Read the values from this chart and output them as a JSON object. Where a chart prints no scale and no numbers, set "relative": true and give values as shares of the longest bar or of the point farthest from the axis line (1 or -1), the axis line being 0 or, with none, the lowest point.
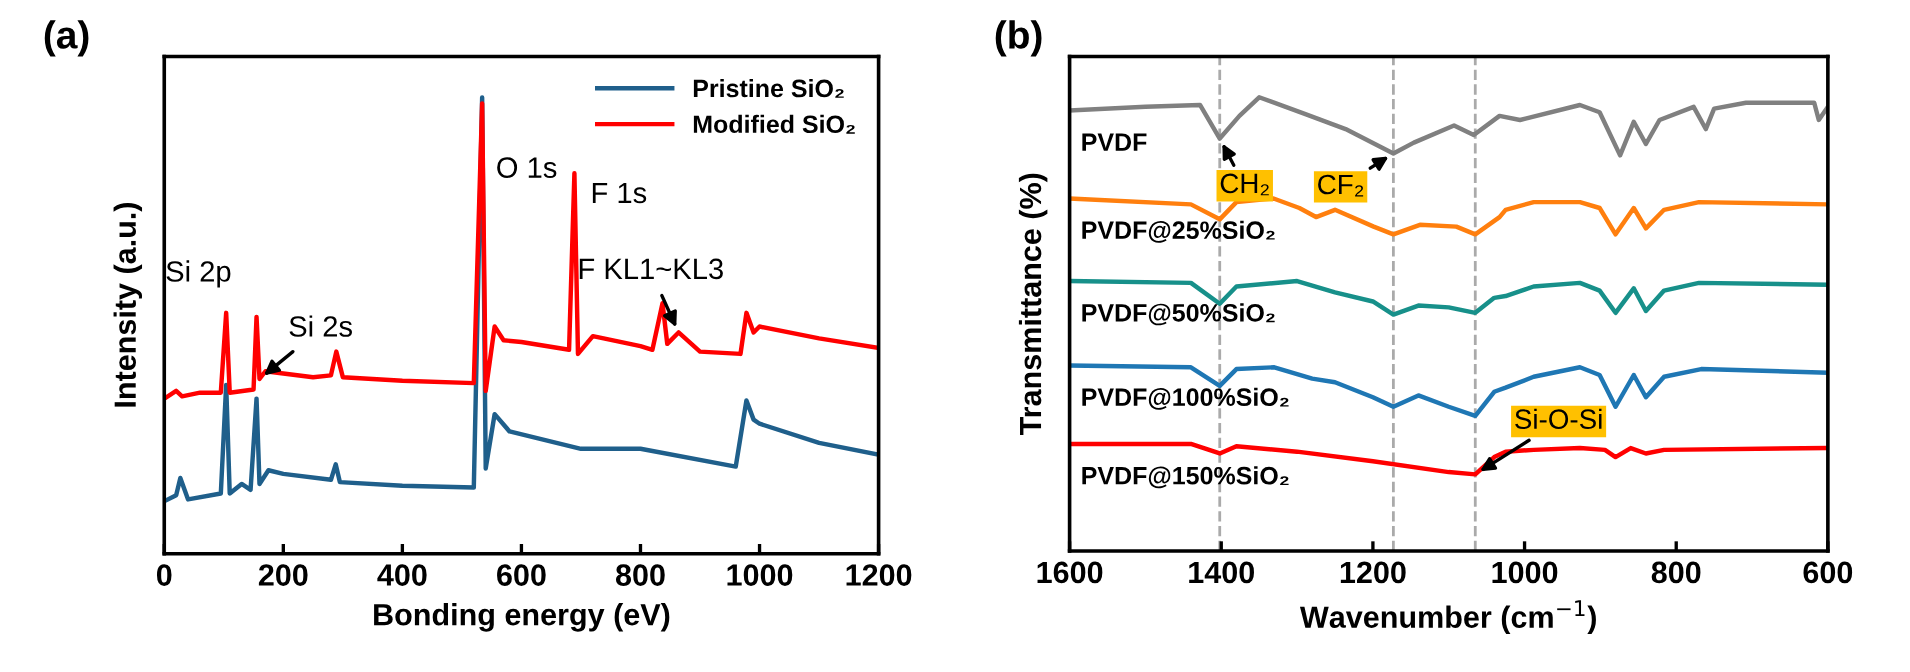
{
  "chart_data": [
    {
      "type": "line",
      "title": "(a)",
      "xlabel": "Bonding energy (eV)",
      "ylabel": "Intensity (a.u.)",
      "relative": true,
      "xlim": [
        0,
        1200
      ],
      "xticks": [
        0,
        200,
        400,
        600,
        800,
        1000,
        1200
      ],
      "tick_labels": "x",
      "grid": false,
      "legend": "top right",
      "series": [
        {
          "name": "Pristine SiO₂",
          "color": "#1f5f8b",
          "x": [
            0,
            20,
            27,
            40,
            95,
            104,
            110,
            130,
            145,
            155,
            160,
            175,
            200,
            280,
            288,
            295,
            400,
            520,
            534,
            540,
            555,
            580,
            700,
            800,
            960,
            978,
            990,
            1000,
            1100,
            1200
          ],
          "values": [
            0.115,
            0.128,
            0.166,
            0.119,
            0.132,
            0.37,
            0.132,
            0.153,
            0.14,
            0.34,
            0.153,
            0.183,
            0.175,
            0.162,
            0.196,
            0.157,
            0.149,
            0.145,
            1.0,
            0.187,
            0.306,
            0.268,
            0.23,
            0.23,
            0.191,
            0.336,
            0.294,
            0.285,
            0.243,
            0.217
          ]
        },
        {
          "name": "Modified SiO₂",
          "color": "#ff0000",
          "x": [
            0,
            20,
            30,
            60,
            95,
            104,
            110,
            150,
            155,
            160,
            170,
            250,
            280,
            289,
            300,
            400,
            520,
            534,
            540,
            555,
            570,
            600,
            680,
            689,
            695,
            720,
            800,
            820,
            837,
            845,
            864,
            900,
            968,
            978,
            990,
            1000,
            1100,
            1200
          ],
          "values": [
            0.34,
            0.357,
            0.345,
            0.353,
            0.353,
            0.528,
            0.353,
            0.36,
            0.519,
            0.383,
            0.4,
            0.387,
            0.391,
            0.443,
            0.387,
            0.379,
            0.374,
            0.987,
            0.357,
            0.498,
            0.468,
            0.464,
            0.447,
            0.834,
            0.438,
            0.477,
            0.455,
            0.447,
            0.549,
            0.46,
            0.485,
            0.443,
            0.438,
            0.528,
            0.485,
            0.498,
            0.472,
            0.451
          ]
        }
      ],
      "annotations": [
        {
          "text": "Si 2p",
          "x": 104,
          "y": 0.528
        },
        {
          "text": "Si 2s",
          "x": 160,
          "y": 0.383
        },
        {
          "text": "O 1s",
          "x": 534,
          "y": 0.987
        },
        {
          "text": "F 1s",
          "x": 689,
          "y": 0.834
        },
        {
          "text": "F KL1~KL3",
          "x": 864,
          "y": 0.485
        }
      ]
    },
    {
      "type": "line",
      "title": "(b)",
      "xlabel": "Wavenumber (cm$^{−1}$)",
      "ylabel": "Transmittance (%)",
      "relative": true,
      "xlim": [
        1600,
        600
      ],
      "xticks": [
        1600,
        1400,
        1200,
        1000,
        800,
        600
      ],
      "tick_labels": "x",
      "grid": false,
      "legend": false,
      "ref_lines": [
        {
          "axis": "x",
          "value": 1402,
          "color": "#aaaaaa",
          "line_style": "dashed"
        },
        {
          "axis": "x",
          "value": 1173,
          "color": "#aaaaaa",
          "line_style": "dashed"
        },
        {
          "axis": "x",
          "value": 1065,
          "color": "#aaaaaa",
          "line_style": "dashed"
        }
      ],
      "series": [
        {
          "name": "PVDF",
          "color": "#808080",
          "x": [
            1600,
            1500,
            1428,
            1402,
            1376,
            1350,
            1289,
            1236,
            1173,
            1146,
            1093,
            1067,
            1033,
            1006,
            927,
            901,
            874,
            856,
            840,
            822,
            777,
            761,
            750,
            708,
            618,
            612,
            600
          ],
          "values": [
            0.971,
            0.979,
            0.983,
            0.909,
            0.959,
            1.0,
            0.963,
            0.93,
            0.876,
            0.9,
            0.938,
            0.917,
            0.959,
            0.95,
            0.983,
            0.967,
            0.872,
            0.946,
            0.897,
            0.95,
            0.979,
            0.93,
            0.975,
            0.988,
            0.988,
            0.95,
            0.979
          ]
        },
        {
          "name": "PVDF@25%SiO₂",
          "color": "#ff7f0e",
          "x": [
            1600,
            1440,
            1402,
            1380,
            1331,
            1297,
            1275,
            1250,
            1199,
            1173,
            1138,
            1090,
            1065,
            1033,
            1025,
            988,
            927,
            901,
            880,
            856,
            840,
            816,
            770,
            600
          ],
          "values": [
            0.777,
            0.764,
            0.731,
            0.769,
            0.777,
            0.756,
            0.736,
            0.752,
            0.715,
            0.698,
            0.719,
            0.715,
            0.698,
            0.736,
            0.752,
            0.769,
            0.769,
            0.756,
            0.698,
            0.756,
            0.711,
            0.752,
            0.769,
            0.764
          ]
        },
        {
          "name": "PVDF@50%SiO₂",
          "color": "#17908a",
          "x": [
            1600,
            1440,
            1402,
            1380,
            1300,
            1250,
            1200,
            1173,
            1140,
            1100,
            1065,
            1040,
            1025,
            988,
            927,
            901,
            880,
            856,
            840,
            816,
            770,
            600
          ],
          "values": [
            0.595,
            0.591,
            0.545,
            0.583,
            0.595,
            0.57,
            0.55,
            0.521,
            0.541,
            0.537,
            0.525,
            0.558,
            0.562,
            0.583,
            0.591,
            0.574,
            0.525,
            0.579,
            0.529,
            0.574,
            0.591,
            0.587
          ]
        },
        {
          "name": "PVDF@100%SiO₂",
          "color": "#1f77b4",
          "x": [
            1600,
            1440,
            1402,
            1380,
            1330,
            1280,
            1250,
            1200,
            1173,
            1140,
            1100,
            1065,
            1040,
            1025,
            988,
            927,
            901,
            880,
            856,
            840,
            816,
            767,
            600
          ],
          "values": [
            0.409,
            0.405,
            0.364,
            0.401,
            0.405,
            0.38,
            0.372,
            0.339,
            0.318,
            0.343,
            0.318,
            0.298,
            0.351,
            0.36,
            0.384,
            0.405,
            0.388,
            0.318,
            0.388,
            0.339,
            0.384,
            0.401,
            0.393
          ]
        },
        {
          "name": "PVDF@150%SiO₂",
          "color": "#ff0000",
          "x": [
            1600,
            1440,
            1402,
            1380,
            1300,
            1200,
            1100,
            1065,
            1040,
            1025,
            988,
            927,
            894,
            880,
            860,
            840,
            816,
            600
          ],
          "values": [
            0.236,
            0.236,
            0.215,
            0.231,
            0.219,
            0.198,
            0.174,
            0.169,
            0.207,
            0.219,
            0.223,
            0.227,
            0.223,
            0.207,
            0.227,
            0.215,
            0.223,
            0.227
          ]
        }
      ],
      "annotations": [
        {
          "text": "CH₂",
          "x": 1402,
          "y": 0.909
        },
        {
          "text": "CF₂",
          "x": 1173,
          "y": 0.876
        },
        {
          "text": "Si-O-Si",
          "x": 1065,
          "y": 0.169
        }
      ]
    }
  ]
}
